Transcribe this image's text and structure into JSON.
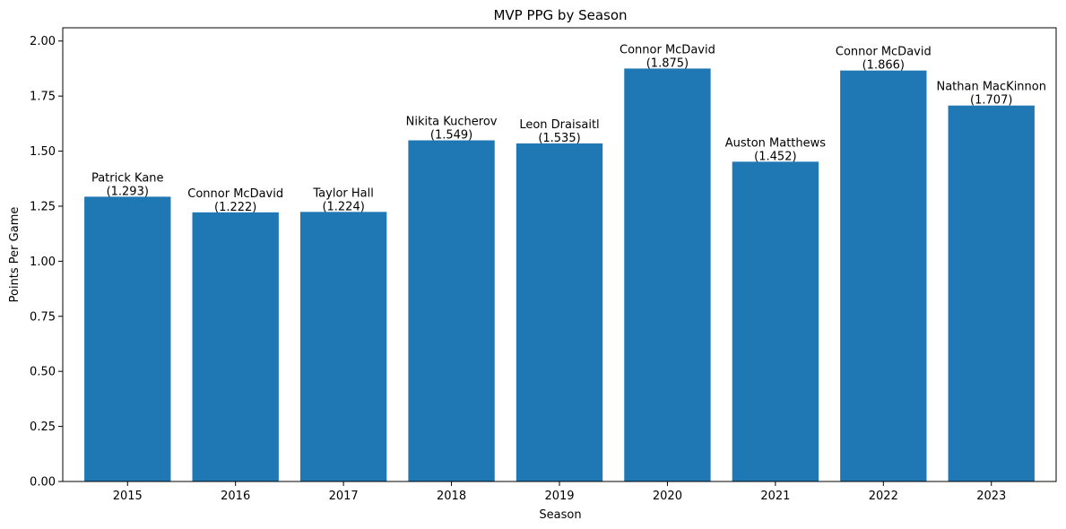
{
  "chart_data": {
    "type": "bar",
    "title": "MVP PPG by Season",
    "xlabel": "Season",
    "ylabel": "Points Per Game",
    "categories": [
      "2015",
      "2016",
      "2017",
      "2018",
      "2019",
      "2020",
      "2021",
      "2022",
      "2023"
    ],
    "values": [
      1.293,
      1.222,
      1.224,
      1.549,
      1.535,
      1.875,
      1.452,
      1.866,
      1.707
    ],
    "bar_labels": [
      [
        "Patrick Kane",
        "(1.293)"
      ],
      [
        "Connor McDavid",
        "(1.222)"
      ],
      [
        "Taylor Hall",
        "(1.224)"
      ],
      [
        "Nikita Kucherov",
        "(1.549)"
      ],
      [
        "Leon Draisaitl",
        "(1.535)"
      ],
      [
        "Connor McDavid",
        "(1.875)"
      ],
      [
        "Auston Matthews",
        "(1.452)"
      ],
      [
        "Connor McDavid",
        "(1.866)"
      ],
      [
        "Nathan MacKinnon",
        "(1.707)"
      ]
    ],
    "ylim": [
      0,
      2.06
    ],
    "yticks": [
      "0.00",
      "0.25",
      "0.50",
      "0.75",
      "1.00",
      "1.25",
      "1.50",
      "1.75",
      "2.00"
    ],
    "grid": false,
    "bar_color": "#1f77b4"
  }
}
